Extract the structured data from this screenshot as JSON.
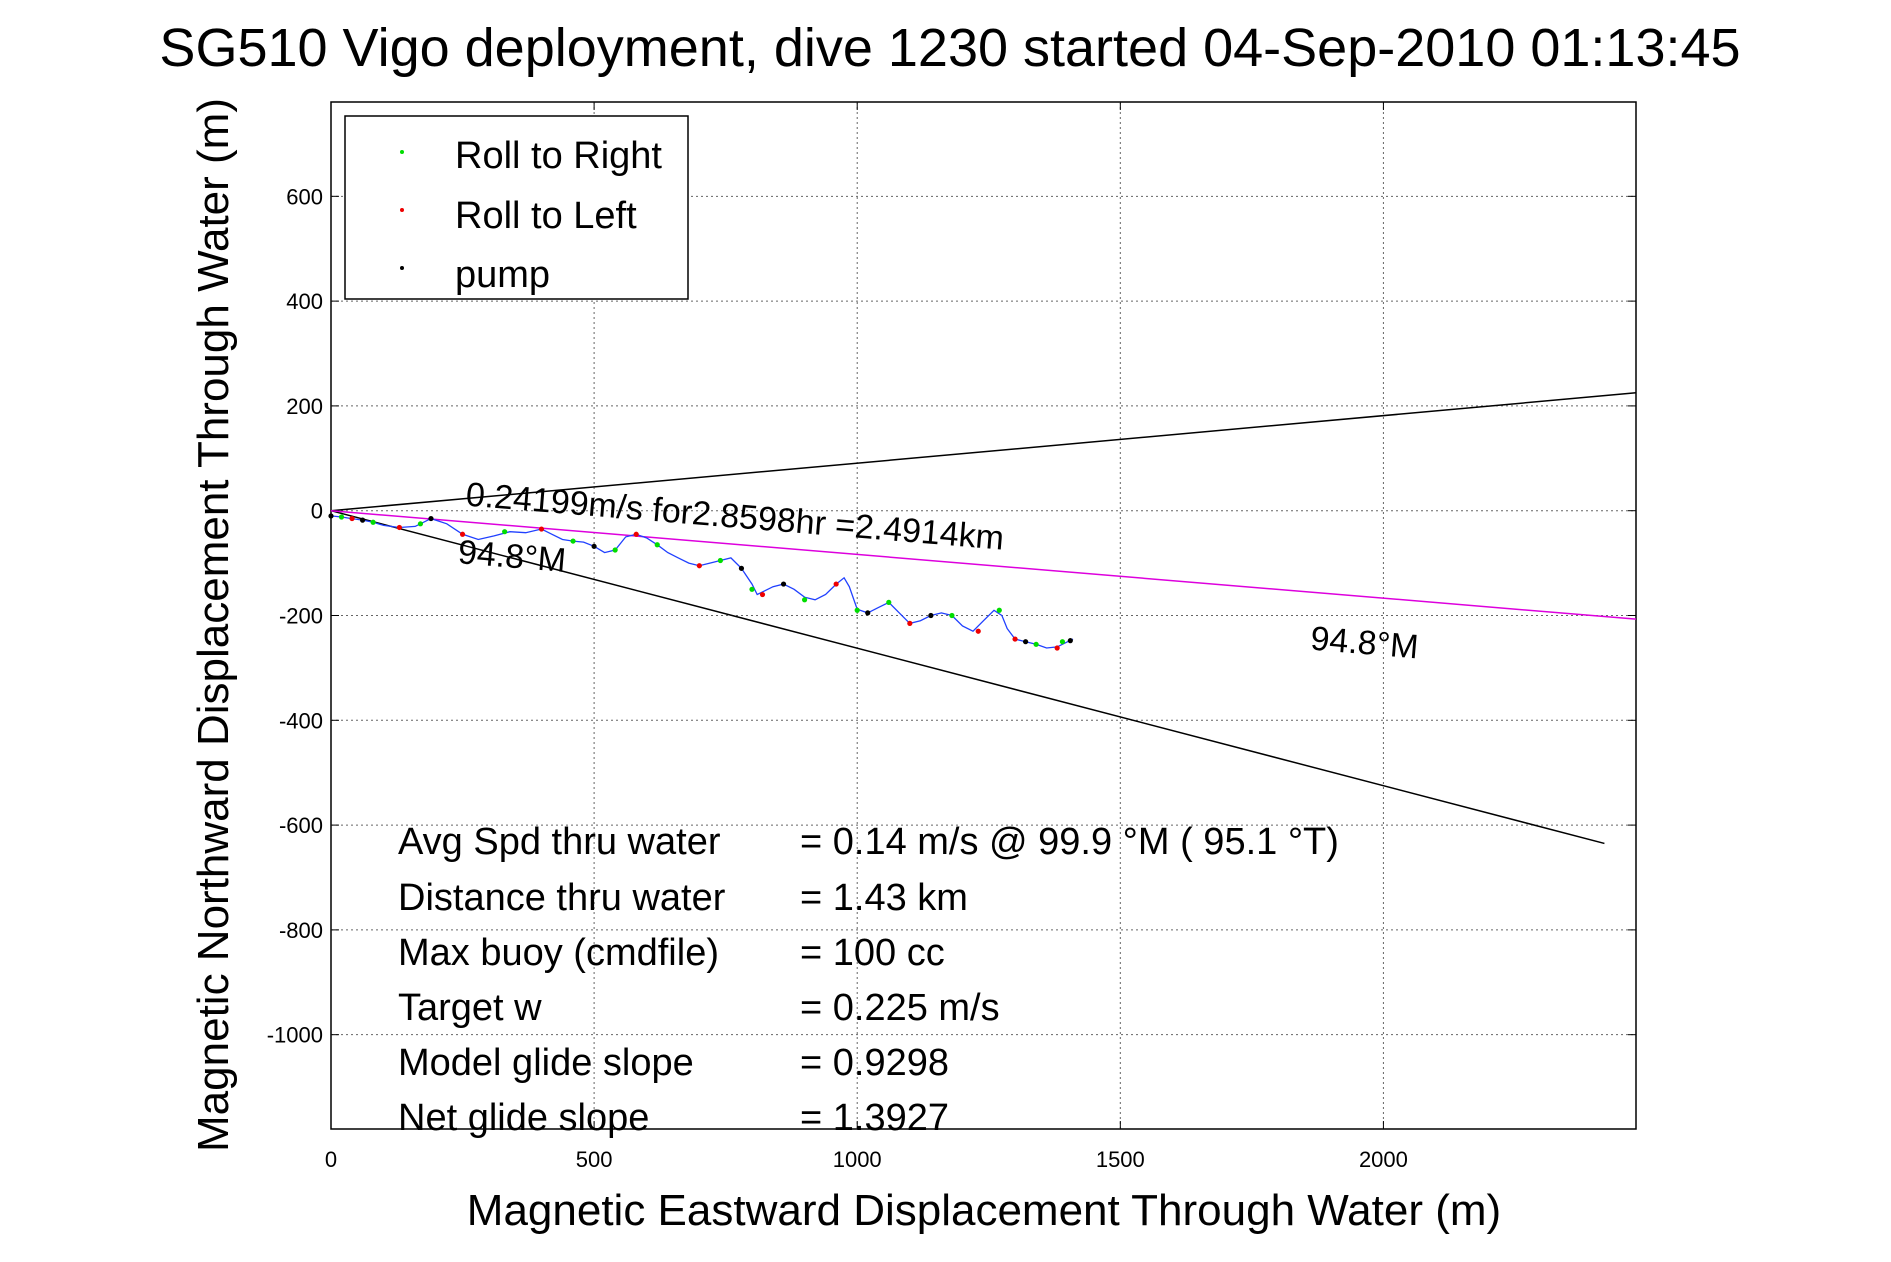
{
  "chart_data": {
    "type": "scatter",
    "title": "SG510 Vigo deployment, dive 1230 started 04-Sep-2010 01:13:45",
    "xlabel": "Magnetic Eastward Displacement Through Water (m)",
    "ylabel": "Magnetic Northward Displacement Through Water (m)",
    "xlim": [
      0,
      2480
    ],
    "ylim": [
      -1180,
      780
    ],
    "xticks": [
      "0",
      "500",
      "1000",
      "1500",
      "2000"
    ],
    "xtick_values": [
      0,
      500,
      1000,
      1500,
      2000
    ],
    "yticks": [
      "600",
      "400",
      "200",
      "0",
      "-200",
      "-400",
      "-600",
      "-800",
      "-1000"
    ],
    "ytick_values": [
      600,
      400,
      200,
      0,
      -200,
      -400,
      -600,
      -800,
      -1000
    ],
    "grid": true,
    "legend_position": "top-left",
    "legend": [
      {
        "label": "Roll to Right",
        "color": "#00dd00"
      },
      {
        "label": "Roll to Left",
        "color": "#ee0000"
      },
      {
        "label": "pump",
        "color": "#000000"
      }
    ],
    "series": [
      {
        "name": "track",
        "color": "#2040ff",
        "x": [
          0,
          20,
          40,
          60,
          80,
          100,
          130,
          160,
          190,
          220,
          250,
          280,
          310,
          340,
          370,
          400,
          420,
          440,
          460,
          480,
          500,
          520,
          540,
          560,
          580,
          600,
          620,
          640,
          660,
          680,
          700,
          720,
          740,
          760,
          780,
          800,
          810,
          820,
          840,
          860,
          880,
          900,
          920,
          940,
          960,
          975,
          985,
          1000,
          1020,
          1040,
          1060,
          1080,
          1100,
          1120,
          1140,
          1160,
          1180,
          1200,
          1220,
          1240,
          1260,
          1275,
          1285,
          1300,
          1320,
          1340,
          1360,
          1380,
          1400,
          1410
        ],
        "y": [
          -10,
          -12,
          -15,
          -18,
          -22,
          -28,
          -32,
          -30,
          -15,
          -25,
          -45,
          -55,
          -48,
          -40,
          -42,
          -35,
          -45,
          -55,
          -58,
          -60,
          -68,
          -80,
          -75,
          -50,
          -45,
          -52,
          -65,
          -80,
          -90,
          -100,
          -105,
          -100,
          -95,
          -90,
          -110,
          -140,
          -160,
          -155,
          -145,
          -140,
          -150,
          -165,
          -170,
          -160,
          -140,
          -128,
          -145,
          -188,
          -195,
          -185,
          -175,
          -195,
          -215,
          -210,
          -200,
          -195,
          -200,
          -220,
          -230,
          -210,
          -190,
          -200,
          -225,
          -245,
          -250,
          -255,
          -262,
          -260,
          -250,
          -245
        ]
      }
    ],
    "roll_right": {
      "x": [
        20,
        80,
        170,
        330,
        460,
        540,
        620,
        740,
        800,
        900,
        1000,
        1060,
        1180,
        1270,
        1340,
        1390
      ],
      "y": [
        -12,
        -22,
        -25,
        -40,
        -58,
        -75,
        -65,
        -95,
        -150,
        -170,
        -190,
        -175,
        -200,
        -190,
        -255,
        -250
      ]
    },
    "roll_left": {
      "x": [
        40,
        130,
        250,
        400,
        580,
        700,
        820,
        960,
        1100,
        1230,
        1300,
        1380
      ],
      "y": [
        -15,
        -32,
        -45,
        -35,
        -45,
        -105,
        -160,
        -140,
        -215,
        -230,
        -245,
        -262
      ]
    },
    "pump": {
      "x": [
        0,
        60,
        190,
        500,
        780,
        860,
        1020,
        1140,
        1320,
        1405
      ],
      "y": [
        -10,
        -18,
        -15,
        -68,
        -110,
        -140,
        -195,
        -200,
        -250,
        -248
      ]
    },
    "lines": [
      {
        "name": "upper-bound",
        "color": "#000000",
        "x": [
          0,
          2480
        ],
        "y": [
          0,
          225
        ]
      },
      {
        "name": "lower-bound",
        "color": "#000000",
        "x": [
          0,
          2420
        ],
        "y": [
          0,
          -635
        ]
      },
      {
        "name": "heading",
        "color": "#dd00dd",
        "x": [
          0,
          2480
        ],
        "y": [
          0,
          -207
        ]
      }
    ],
    "annotations": [
      {
        "text": "0.24199m/s for2.8598hr =2.4914km",
        "x": 255,
        "y": 10,
        "rotate": 4.7
      },
      {
        "text": "94.8°M",
        "x": 240,
        "y": -100,
        "rotate": 4.7
      },
      {
        "text": "94.8°M",
        "x": 1860,
        "y": -265,
        "rotate": 4.7
      }
    ],
    "stats": [
      {
        "label": "Avg Spd thru water",
        "value": "=  0.14 m/s @  99.9 °M ( 95.1 °T)"
      },
      {
        "label": "Distance thru water",
        "value": "=  1.43 km"
      },
      {
        "label": "Max buoy (cmdfile)",
        "value": "= 100 cc"
      },
      {
        "label": "Target w",
        "value": "= 0.225 m/s"
      },
      {
        "label": "Model glide slope",
        "value": "= 0.9298"
      },
      {
        "label": "Net glide slope",
        "value": "= 1.3927"
      }
    ]
  }
}
